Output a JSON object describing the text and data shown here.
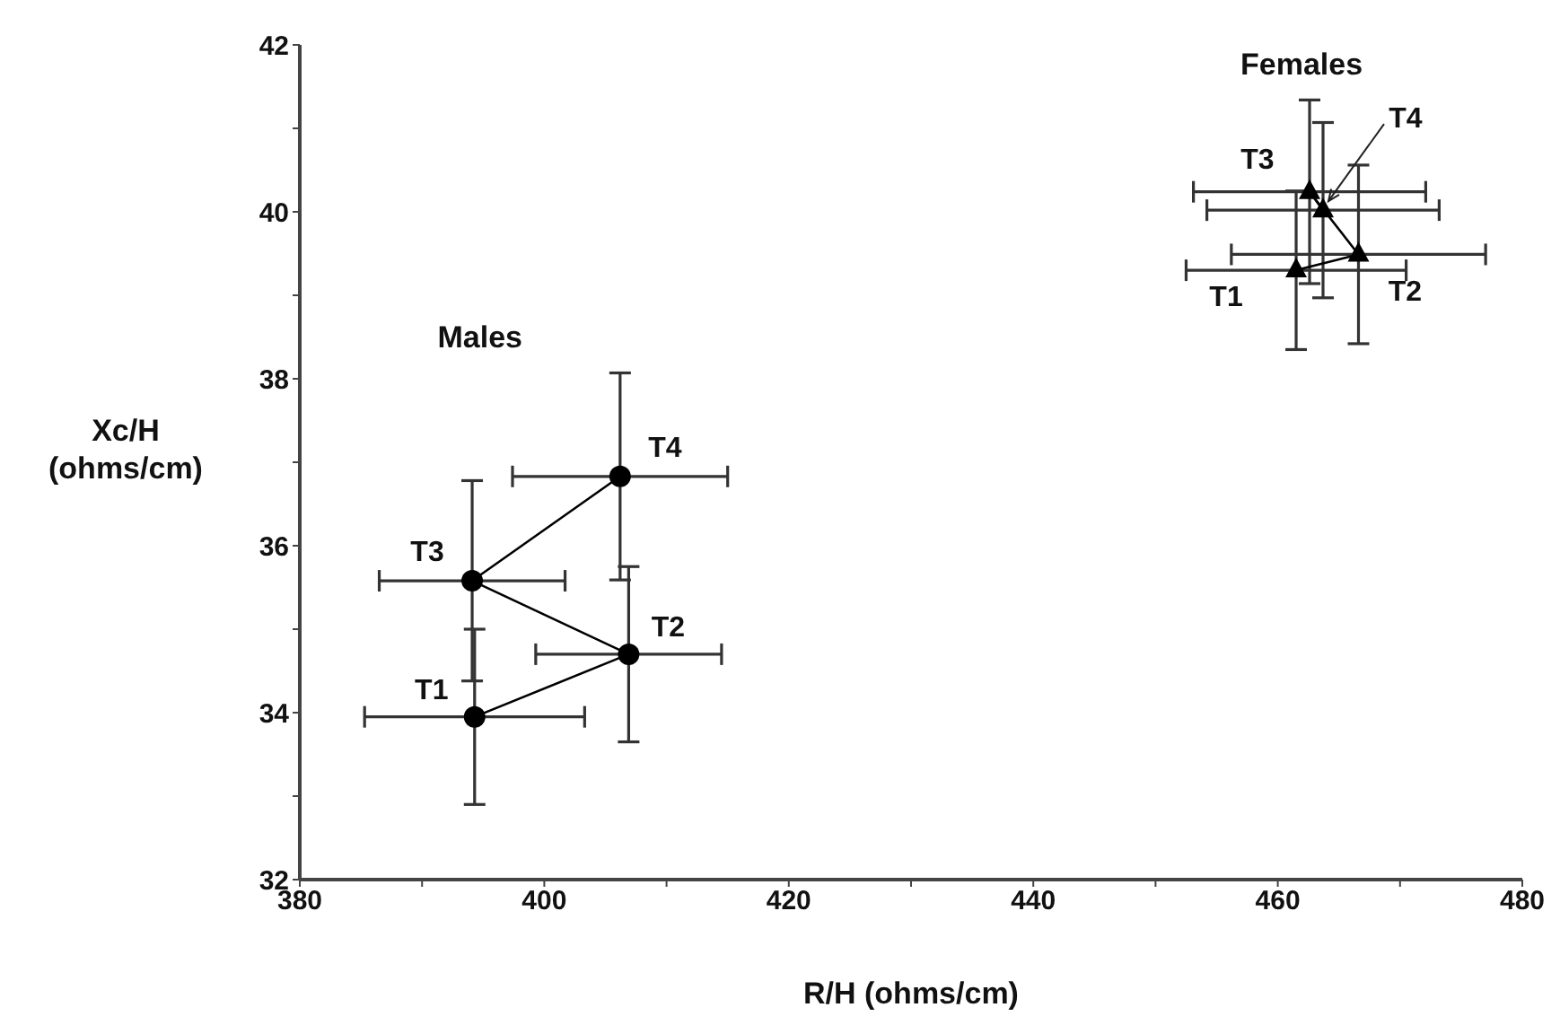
{
  "chart_data": {
    "type": "scatter",
    "xlabel": "R/H (ohms/cm)",
    "ylabel": "Xc/H (ohms/cm)",
    "xlim": [
      380,
      480
    ],
    "xticks": [
      380,
      {
        "value": 390,
        "label": null
      },
      400,
      {
        "value": 410,
        "label": null
      },
      420,
      {
        "value": 430,
        "label": null
      },
      440,
      {
        "value": 450,
        "label": null
      },
      460,
      {
        "value": 470,
        "label": null
      },
      480
    ],
    "ylim": [
      32,
      42
    ],
    "yticks": [
      32,
      {
        "value": 33,
        "label": null
      },
      34,
      {
        "value": 35,
        "label": null
      },
      36,
      {
        "value": 37,
        "label": null
      },
      38,
      {
        "value": 39,
        "label": null
      },
      40,
      {
        "value": 41,
        "label": null
      },
      42
    ],
    "grid": false,
    "legend": false,
    "line_style": "solid",
    "series": [
      {
        "type": "line",
        "color": "#000000",
        "marker": "circle",
        "x": [
          394.3,
          406.9,
          394.1,
          406.2
        ],
        "values": [
          33.95,
          34.7,
          35.58,
          36.83
        ],
        "errors": [
          1.05,
          1.05,
          1.2,
          1.24
        ],
        "xerrors": [
          9,
          7.6,
          7.6,
          8.8
        ]
      },
      {
        "type": "line",
        "color": "#000000",
        "marker": "triangle",
        "x": [
          461.5,
          466.6,
          462.6,
          463.7
        ],
        "values": [
          39.3,
          39.49,
          40.24,
          40.02
        ],
        "errors": [
          0.95,
          1.07,
          1.1,
          1.05
        ],
        "xerrors": [
          9,
          10.4,
          9.5,
          9.5
        ]
      }
    ],
    "annotations": [
      {
        "text": "T1",
        "x": 394.3,
        "y": 33.95
      },
      {
        "text": "T2",
        "x": 406.9,
        "y": 34.7
      },
      {
        "text": "T3",
        "x": 394.1,
        "y": 35.58
      },
      {
        "text": "T4",
        "x": 406.2,
        "y": 36.83
      },
      {
        "text": "T1",
        "x": 461.5,
        "y": 39.3
      },
      {
        "text": "T2",
        "x": 466.6,
        "y": 39.49
      },
      {
        "text": "T3",
        "x": 462.6,
        "y": 40.24
      },
      {
        "text": "T4",
        "x": 463.7,
        "y": 40.02
      },
      "Males",
      "Females"
    ]
  }
}
